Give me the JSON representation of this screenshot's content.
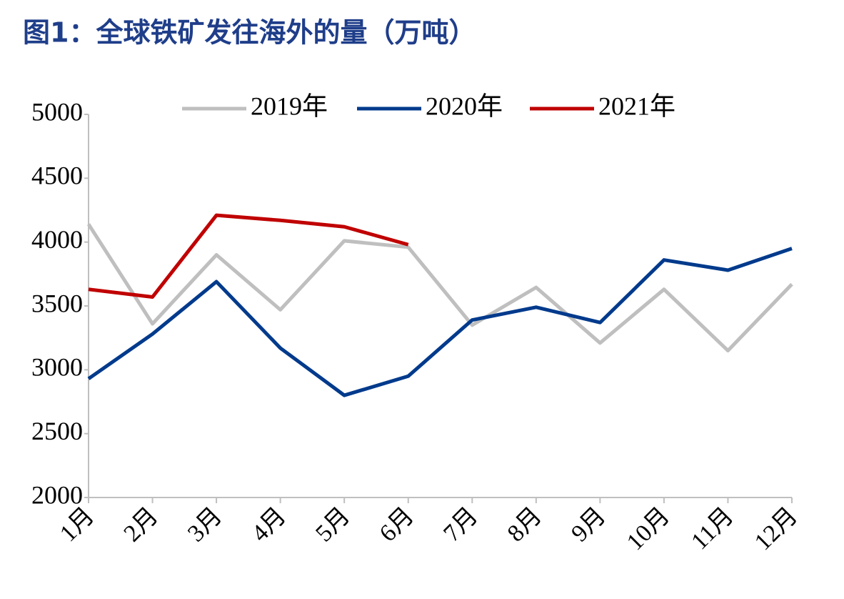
{
  "chart_data": {
    "type": "line",
    "title": "图1：全球铁矿发往海外的量（万吨）",
    "categories": [
      "1月",
      "2月",
      "3月",
      "4月",
      "5月",
      "6月",
      "7月",
      "8月",
      "9月",
      "10月",
      "11月",
      "12月"
    ],
    "series": [
      {
        "name": "2019年",
        "color": "#bfbfbf",
        "values": [
          4140,
          3360,
          3900,
          3470,
          4010,
          3960,
          3350,
          3645,
          3210,
          3630,
          3150,
          3670
        ]
      },
      {
        "name": "2020年",
        "color": "#003a8c",
        "values": [
          2930,
          3280,
          3690,
          3170,
          2800,
          2950,
          3390,
          3490,
          3370,
          3860,
          3780,
          3950
        ]
      },
      {
        "name": "2021年",
        "color": "#c00000",
        "values": [
          3630,
          3570,
          4210,
          4170,
          4120,
          3980,
          null,
          null,
          null,
          null,
          null,
          null
        ]
      }
    ],
    "ylim": [
      2000,
      5000
    ],
    "yticks": [
      2000,
      2500,
      3000,
      3500,
      4000,
      4500,
      5000
    ],
    "grid": false,
    "legend": "top"
  }
}
